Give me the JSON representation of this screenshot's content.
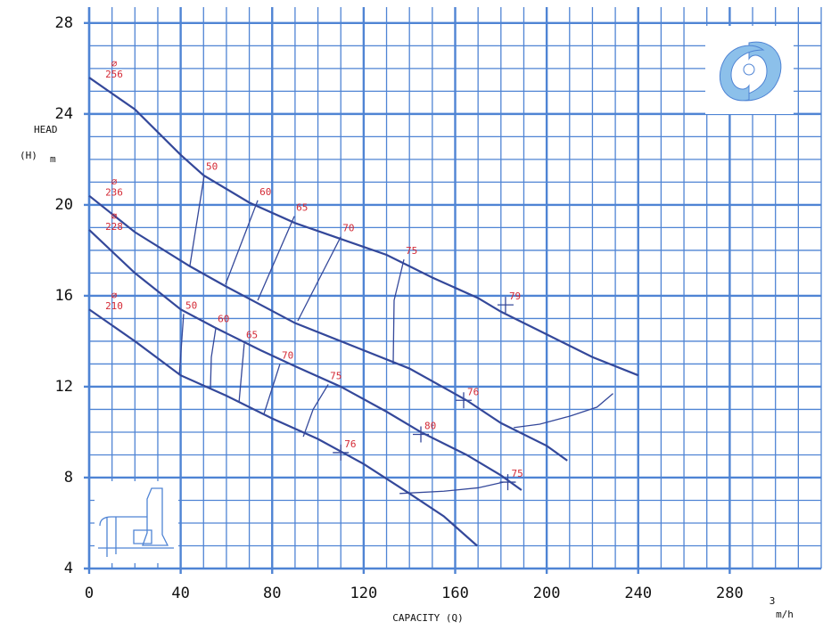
{
  "chart_data": {
    "type": "line",
    "y_label": "HEAD",
    "y_label_2": "(H)",
    "y_unit": "m",
    "x_label": "CAPACITY (Q)",
    "x_unit": "m/h",
    "x_unit_sup": "3",
    "diameter_symbol": "⌀",
    "xlim": [
      0,
      320
    ],
    "ylim": [
      4,
      28.7
    ],
    "xticks": [
      0,
      40,
      80,
      120,
      160,
      200,
      240,
      280
    ],
    "yticks": [
      4,
      8,
      12,
      16,
      20,
      24,
      28
    ],
    "xminor": 10,
    "yminor": 1,
    "grid": true,
    "grid_color": "#4f84d4",
    "series": [
      {
        "name": "256",
        "color": "#34489a",
        "x": [
          0,
          20,
          40,
          50,
          70,
          90,
          110,
          130,
          150,
          170,
          180,
          200,
          220,
          240
        ],
        "values": [
          25.6,
          24.2,
          22.2,
          21.3,
          20.1,
          19.2,
          18.5,
          17.8,
          16.8,
          15.9,
          15.3,
          14.3,
          13.3,
          12.5
        ]
      },
      {
        "name": "236",
        "color": "#34489a",
        "x": [
          0,
          20,
          44,
          60,
          90,
          120,
          140,
          165,
          180,
          200,
          209
        ],
        "values": [
          20.4,
          18.8,
          17.3,
          16.4,
          14.8,
          13.6,
          12.8,
          11.4,
          10.4,
          9.4,
          8.75
        ]
      },
      {
        "name": "228",
        "color": "#34489a",
        "x": [
          0,
          20,
          40,
          55,
          75,
          90,
          110,
          130,
          145,
          165,
          180,
          189
        ],
        "values": [
          18.9,
          17.0,
          15.4,
          14.6,
          13.6,
          12.9,
          12.0,
          10.9,
          10.0,
          9.0,
          8.1,
          7.45
        ]
      },
      {
        "name": "210",
        "color": "#34489a",
        "x": [
          0,
          20,
          40,
          60,
          80,
          100,
          120,
          140,
          155,
          169.6
        ],
        "values": [
          15.4,
          14.0,
          12.5,
          11.6,
          10.6,
          9.7,
          8.6,
          7.3,
          6.3,
          5.0
        ]
      }
    ],
    "extra_curves": [
      {
        "x": [
          185.6,
          197,
          210,
          222,
          229
        ],
        "values": [
          10.2,
          10.35,
          10.7,
          11.1,
          11.7
        ]
      },
      {
        "x": [
          135.7,
          155,
          170,
          181
        ],
        "values": [
          7.3,
          7.4,
          7.55,
          7.8
        ]
      }
    ],
    "efficiency_lines": [
      {
        "label": "50",
        "x": [
          50.3,
          44
        ],
        "values": [
          21.3,
          17.3
        ]
      },
      {
        "label": "60",
        "x": [
          73.7,
          59.6
        ],
        "values": [
          20.2,
          16.5
        ]
      },
      {
        "label": "65",
        "x": [
          89.7,
          73.7
        ],
        "values": [
          19.5,
          15.8
        ]
      },
      {
        "label": "70",
        "x": [
          110,
          91.2
        ],
        "values": [
          18.6,
          14.9
        ]
      },
      {
        "label": "75",
        "x": [
          137.6,
          133.3,
          132.9
        ],
        "values": [
          17.6,
          15.8,
          13.0
        ]
      },
      {
        "label": "50",
        "x": [
          41.3,
          39.4
        ],
        "values": [
          15.2,
          12.5
        ]
      },
      {
        "label": "60",
        "x": [
          55.4,
          53.4,
          53
        ],
        "values": [
          14.6,
          13.3,
          11.9
        ]
      },
      {
        "label": "65",
        "x": [
          67.8,
          65.5
        ],
        "values": [
          13.9,
          11.3
        ]
      },
      {
        "label": "70",
        "x": [
          83.4,
          76.4
        ],
        "values": [
          13.0,
          10.8
        ]
      },
      {
        "label": "75",
        "x": [
          104.5,
          97.9,
          93.6
        ],
        "values": [
          12.1,
          11.0,
          9.8
        ]
      }
    ],
    "points": [
      {
        "label": "79",
        "x": 182,
        "value": 15.6
      },
      {
        "label": "76",
        "x": 163.7,
        "value": 11.4
      },
      {
        "label": "80",
        "x": 145,
        "value": 9.9
      },
      {
        "label": "76",
        "x": 110,
        "value": 9.1
      },
      {
        "label": "75",
        "x": 183,
        "value": 7.8
      }
    ]
  }
}
